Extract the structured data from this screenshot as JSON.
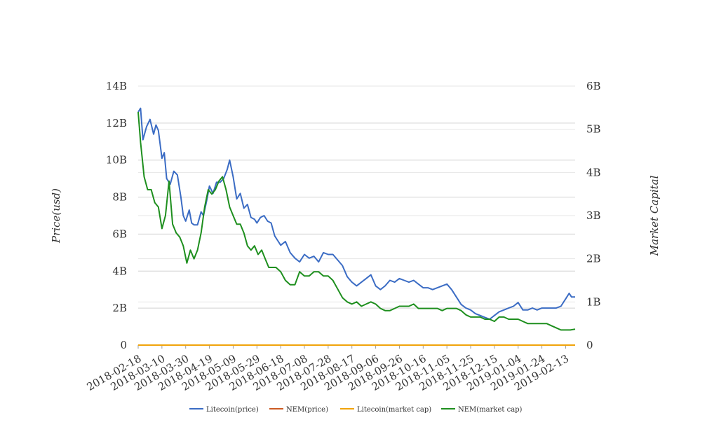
{
  "chart_data": {
    "type": "line",
    "y_left": {
      "label": "Price(usd)",
      "ticks": [
        "0",
        "2B",
        "4B",
        "6B",
        "8B",
        "10B",
        "12B",
        "14B"
      ],
      "range": [
        0,
        14000000000
      ]
    },
    "y_right": {
      "label": "Market Capital",
      "ticks": [
        "0",
        "1B",
        "2B",
        "3B",
        "4B",
        "5B",
        "6B"
      ],
      "range": [
        0,
        6000000000
      ]
    },
    "x_ticks": [
      "2018-02-18",
      "2018-03-10",
      "2018-03-30",
      "2018-04-19",
      "2018-05-09",
      "2018-05-29",
      "2018-06-18",
      "2018-07-08",
      "2018-07-28",
      "2018-08-17",
      "2018-09-06",
      "2018-09-26",
      "2018-10-16",
      "2018-11-05",
      "2018-11-25",
      "2018-12-15",
      "2019-01-04",
      "2019-01-24",
      "2019-02-13"
    ],
    "x_range": [
      "2018-02-18",
      "2019-02-21"
    ],
    "grid": true,
    "legend_position": "bottom",
    "series": [
      {
        "name": "Litecoin(price)",
        "axis": "left",
        "color": "#3b6cc4",
        "x": [
          "2018-02-18",
          "2018-02-20",
          "2018-02-22",
          "2018-02-25",
          "2018-02-28",
          "2018-03-03",
          "2018-03-05",
          "2018-03-07",
          "2018-03-10",
          "2018-03-12",
          "2018-03-14",
          "2018-03-17",
          "2018-03-20",
          "2018-03-23",
          "2018-03-26",
          "2018-03-28",
          "2018-03-30",
          "2018-04-02",
          "2018-04-04",
          "2018-04-06",
          "2018-04-09",
          "2018-04-12",
          "2018-04-14",
          "2018-04-17",
          "2018-04-19",
          "2018-04-22",
          "2018-04-25",
          "2018-04-28",
          "2018-05-01",
          "2018-05-04",
          "2018-05-06",
          "2018-05-09",
          "2018-05-12",
          "2018-05-15",
          "2018-05-18",
          "2018-05-21",
          "2018-05-24",
          "2018-05-27",
          "2018-05-29",
          "2018-06-01",
          "2018-06-04",
          "2018-06-07",
          "2018-06-10",
          "2018-06-13",
          "2018-06-16",
          "2018-06-18",
          "2018-06-22",
          "2018-06-26",
          "2018-06-30",
          "2018-07-04",
          "2018-07-08",
          "2018-07-12",
          "2018-07-16",
          "2018-07-20",
          "2018-07-24",
          "2018-07-28",
          "2018-08-01",
          "2018-08-05",
          "2018-08-09",
          "2018-08-13",
          "2018-08-17",
          "2018-08-21",
          "2018-08-25",
          "2018-08-29",
          "2018-09-02",
          "2018-09-06",
          "2018-09-10",
          "2018-09-14",
          "2018-09-18",
          "2018-09-22",
          "2018-09-26",
          "2018-09-30",
          "2018-10-04",
          "2018-10-08",
          "2018-10-12",
          "2018-10-16",
          "2018-10-20",
          "2018-10-24",
          "2018-10-28",
          "2018-11-01",
          "2018-11-05",
          "2018-11-09",
          "2018-11-13",
          "2018-11-17",
          "2018-11-21",
          "2018-11-25",
          "2018-11-29",
          "2018-12-03",
          "2018-12-07",
          "2018-12-11",
          "2018-12-15",
          "2018-12-19",
          "2018-12-23",
          "2018-12-27",
          "2018-12-31",
          "2019-01-04",
          "2019-01-08",
          "2019-01-12",
          "2019-01-16",
          "2019-01-20",
          "2019-01-24",
          "2019-01-28",
          "2019-02-01",
          "2019-02-05",
          "2019-02-09",
          "2019-02-13",
          "2019-02-16",
          "2019-02-18",
          "2019-02-21"
        ],
        "values": [
          12.6,
          12.8,
          11.1,
          11.8,
          12.2,
          11.4,
          11.9,
          11.6,
          10.1,
          10.4,
          9.0,
          8.7,
          9.4,
          9.2,
          8.0,
          7.0,
          6.7,
          7.3,
          6.6,
          6.5,
          6.5,
          7.2,
          7.0,
          7.9,
          8.6,
          8.2,
          8.8,
          8.8,
          9.0,
          9.5,
          10.0,
          9.1,
          7.9,
          8.2,
          7.4,
          7.6,
          6.9,
          6.8,
          6.6,
          6.9,
          7.0,
          6.7,
          6.6,
          5.9,
          5.6,
          5.4,
          5.6,
          5.0,
          4.7,
          4.5,
          4.9,
          4.7,
          4.8,
          4.5,
          5.0,
          4.9,
          4.9,
          4.6,
          4.3,
          3.7,
          3.4,
          3.2,
          3.4,
          3.6,
          3.8,
          3.2,
          3.0,
          3.2,
          3.5,
          3.4,
          3.6,
          3.5,
          3.4,
          3.5,
          3.3,
          3.1,
          3.1,
          3.0,
          3.1,
          3.2,
          3.3,
          3.0,
          2.6,
          2.2,
          2.0,
          1.9,
          1.7,
          1.6,
          1.5,
          1.4,
          1.6,
          1.8,
          1.9,
          2.0,
          2.1,
          2.3,
          1.9,
          1.9,
          2.0,
          1.9,
          2.0,
          2.0,
          2.0,
          2.0,
          2.1,
          2.5,
          2.8,
          2.6,
          2.6
        ]
      },
      {
        "name": "NEM(price)",
        "axis": "left",
        "color": "#cc5a22",
        "x": [
          "2018-02-18",
          "2019-02-21"
        ],
        "values": [
          0.0,
          0.0
        ]
      },
      {
        "name": "Litecoin(market cap)",
        "axis": "right",
        "color": "#f0a30a",
        "x": [
          "2018-02-18",
          "2019-02-21"
        ],
        "values": [
          0.0,
          0.0
        ]
      },
      {
        "name": "NEM(market cap)",
        "axis": "right",
        "color": "#1e8f1e",
        "x": [
          "2018-02-18",
          "2018-02-20",
          "2018-02-23",
          "2018-02-26",
          "2018-03-01",
          "2018-03-04",
          "2018-03-07",
          "2018-03-10",
          "2018-03-13",
          "2018-03-16",
          "2018-03-19",
          "2018-03-22",
          "2018-03-25",
          "2018-03-28",
          "2018-03-31",
          "2018-04-03",
          "2018-04-06",
          "2018-04-09",
          "2018-04-12",
          "2018-04-15",
          "2018-04-18",
          "2018-04-21",
          "2018-04-24",
          "2018-04-27",
          "2018-04-30",
          "2018-05-03",
          "2018-05-06",
          "2018-05-09",
          "2018-05-12",
          "2018-05-15",
          "2018-05-18",
          "2018-05-21",
          "2018-05-24",
          "2018-05-27",
          "2018-05-30",
          "2018-06-02",
          "2018-06-05",
          "2018-06-08",
          "2018-06-11",
          "2018-06-14",
          "2018-06-18",
          "2018-06-22",
          "2018-06-26",
          "2018-06-30",
          "2018-07-04",
          "2018-07-08",
          "2018-07-12",
          "2018-07-16",
          "2018-07-20",
          "2018-07-24",
          "2018-07-28",
          "2018-08-01",
          "2018-08-05",
          "2018-08-09",
          "2018-08-13",
          "2018-08-17",
          "2018-08-21",
          "2018-08-25",
          "2018-08-29",
          "2018-09-02",
          "2018-09-06",
          "2018-09-10",
          "2018-09-14",
          "2018-09-18",
          "2018-09-22",
          "2018-09-26",
          "2018-09-30",
          "2018-10-04",
          "2018-10-08",
          "2018-10-12",
          "2018-10-16",
          "2018-10-20",
          "2018-10-24",
          "2018-10-28",
          "2018-11-01",
          "2018-11-05",
          "2018-11-09",
          "2018-11-13",
          "2018-11-17",
          "2018-11-21",
          "2018-11-25",
          "2018-11-29",
          "2018-12-03",
          "2018-12-07",
          "2018-12-11",
          "2018-12-15",
          "2018-12-19",
          "2018-12-23",
          "2018-12-27",
          "2018-12-31",
          "2019-01-04",
          "2019-01-08",
          "2019-01-12",
          "2019-01-16",
          "2019-01-20",
          "2019-01-24",
          "2019-01-28",
          "2019-02-01",
          "2019-02-05",
          "2019-02-09",
          "2019-02-13",
          "2019-02-17",
          "2019-02-21"
        ],
        "values": [
          5.4,
          4.7,
          3.9,
          3.6,
          3.6,
          3.3,
          3.2,
          2.7,
          3.0,
          3.8,
          2.8,
          2.6,
          2.5,
          2.3,
          1.9,
          2.2,
          2.0,
          2.2,
          2.6,
          3.2,
          3.6,
          3.5,
          3.6,
          3.8,
          3.9,
          3.6,
          3.2,
          3.0,
          2.8,
          2.8,
          2.6,
          2.3,
          2.2,
          2.3,
          2.1,
          2.2,
          2.0,
          1.8,
          1.8,
          1.8,
          1.7,
          1.5,
          1.4,
          1.4,
          1.7,
          1.6,
          1.6,
          1.7,
          1.7,
          1.6,
          1.6,
          1.5,
          1.3,
          1.1,
          1.0,
          0.95,
          1.0,
          0.9,
          0.95,
          1.0,
          0.95,
          0.85,
          0.8,
          0.8,
          0.85,
          0.9,
          0.9,
          0.9,
          0.95,
          0.85,
          0.85,
          0.85,
          0.85,
          0.85,
          0.8,
          0.85,
          0.85,
          0.85,
          0.8,
          0.7,
          0.65,
          0.65,
          0.65,
          0.6,
          0.6,
          0.55,
          0.65,
          0.65,
          0.6,
          0.6,
          0.6,
          0.55,
          0.5,
          0.5,
          0.5,
          0.5,
          0.5,
          0.45,
          0.4,
          0.35,
          0.35,
          0.35,
          0.37
        ]
      }
    ]
  }
}
